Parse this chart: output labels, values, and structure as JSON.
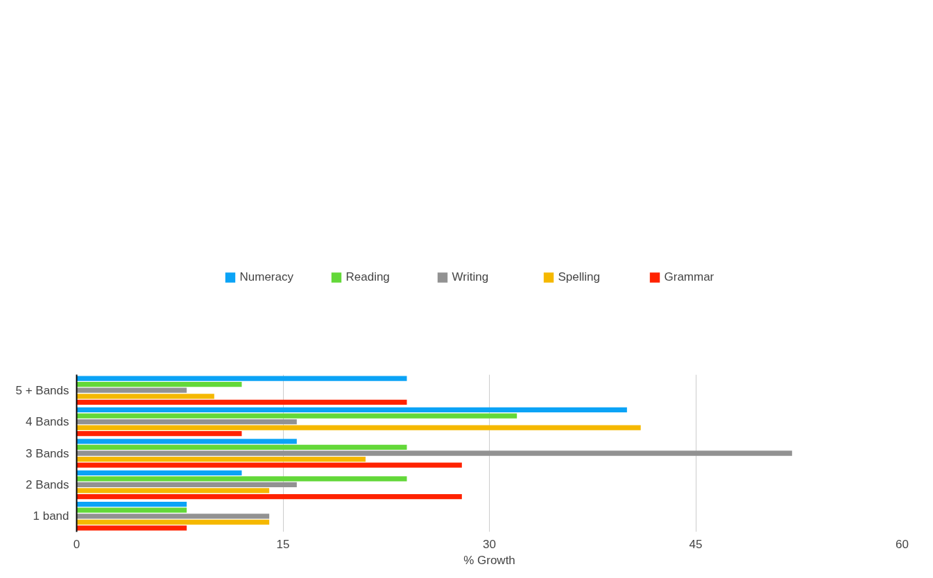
{
  "chart_data": {
    "type": "bar",
    "orientation": "horizontal",
    "xlabel": "% Growth",
    "categories": [
      "5 + Bands",
      "4 Bands",
      "3 Bands",
      "2 Bands",
      "1 band"
    ],
    "series": [
      {
        "name": "Numeracy",
        "color": "#0ba3f6",
        "values": [
          24,
          40,
          16,
          12,
          8
        ]
      },
      {
        "name": "Reading",
        "color": "#63d839",
        "values": [
          12,
          32,
          24,
          24,
          8
        ]
      },
      {
        "name": "Writing",
        "color": "#929292",
        "values": [
          8,
          16,
          52,
          16,
          14
        ]
      },
      {
        "name": "Spelling",
        "color": "#f5b800",
        "values": [
          10,
          41,
          21,
          14,
          14
        ]
      },
      {
        "name": "Grammar",
        "color": "#ff2200",
        "values": [
          24,
          12,
          28,
          28,
          8
        ]
      }
    ],
    "xlim": [
      0,
      60
    ],
    "xticks": [
      0,
      15,
      30,
      45,
      60
    ],
    "grid": "x",
    "legend": "top"
  }
}
